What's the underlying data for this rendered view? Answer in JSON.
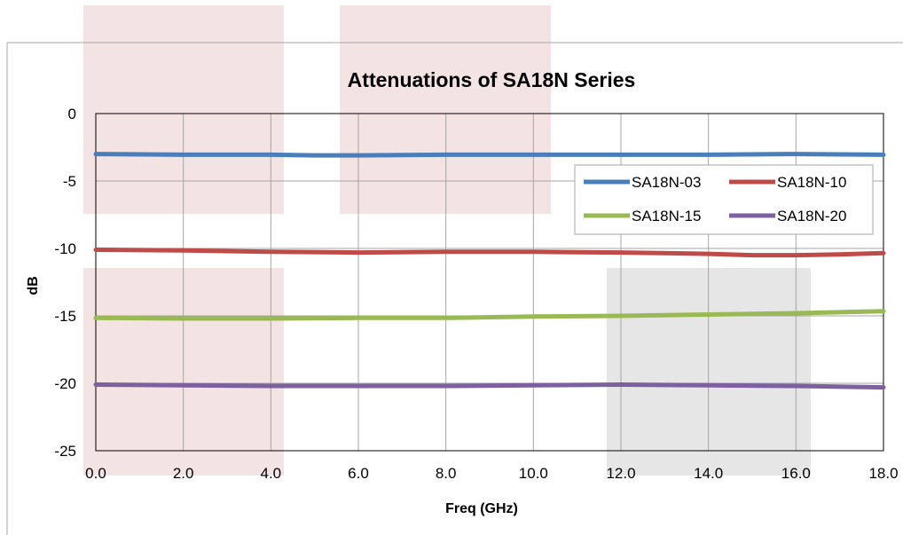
{
  "chart_data": {
    "type": "line",
    "title": "Attenuations of SA18N Series",
    "xlabel": "Freq (GHz)",
    "ylabel": "dB",
    "xlim": [
      0,
      18
    ],
    "ylim": [
      -25,
      0
    ],
    "x_ticks": [
      "0.0",
      "2.0",
      "4.0",
      "6.0",
      "8.0",
      "10.0",
      "12.0",
      "14.0",
      "16.0",
      "18.0"
    ],
    "y_ticks": [
      "0",
      "-5",
      "-10",
      "-15",
      "-20",
      "-25"
    ],
    "grid": true,
    "legend_position": "top-right",
    "series": [
      {
        "name": "SA18N-03",
        "color": "#4a7ebb",
        "x": [
          0,
          2,
          4,
          5,
          6,
          8,
          10,
          12,
          14,
          16,
          18
        ],
        "y": [
          -3.0,
          -3.05,
          -3.05,
          -3.1,
          -3.1,
          -3.05,
          -3.05,
          -3.05,
          -3.05,
          -3.0,
          -3.05
        ]
      },
      {
        "name": "SA18N-10",
        "color": "#be4b48",
        "x": [
          0,
          2,
          4,
          6,
          8,
          10,
          12,
          14,
          15,
          16,
          17,
          18
        ],
        "y": [
          -10.1,
          -10.15,
          -10.25,
          -10.3,
          -10.25,
          -10.25,
          -10.3,
          -10.4,
          -10.5,
          -10.5,
          -10.45,
          -10.35
        ]
      },
      {
        "name": "SA18N-15",
        "color": "#98b954",
        "x": [
          0,
          2,
          4,
          6,
          8,
          10,
          12,
          14,
          16,
          18
        ],
        "y": [
          -15.15,
          -15.2,
          -15.2,
          -15.15,
          -15.15,
          -15.05,
          -15.0,
          -14.9,
          -14.8,
          -14.65
        ]
      },
      {
        "name": "SA18N-20",
        "color": "#7d60a0",
        "x": [
          0,
          2,
          4,
          6,
          8,
          10,
          12,
          14,
          16,
          18
        ],
        "y": [
          -20.1,
          -20.15,
          -20.2,
          -20.2,
          -20.2,
          -20.15,
          -20.1,
          -20.15,
          -20.2,
          -20.3
        ]
      }
    ]
  }
}
